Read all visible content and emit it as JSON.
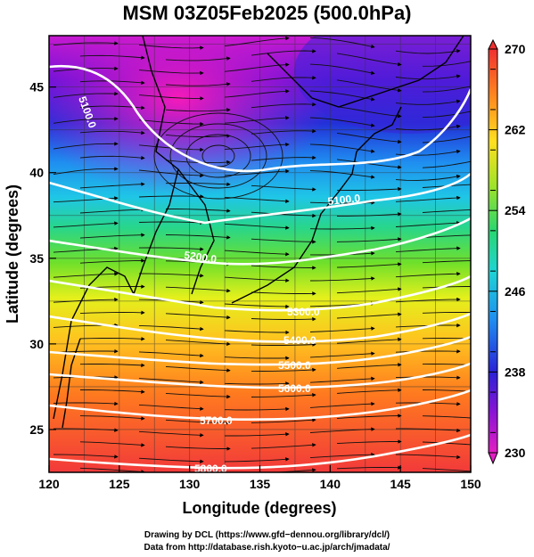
{
  "title": "MSM 03Z05Feb2025 (500.0hPa)",
  "xlabel": "Longitude (degrees)",
  "ylabel": "Latitude  (degrees)",
  "x_ticks": [
    "120",
    "125",
    "130",
    "135",
    "140",
    "145",
    "150"
  ],
  "y_ticks": [
    "25",
    "30",
    "35",
    "40",
    "45"
  ],
  "colorbar": {
    "ticks": [
      "230",
      "238",
      "246",
      "254",
      "262",
      "270"
    ],
    "min": 230,
    "max": 270
  },
  "contours": [
    {
      "label": "5100.0"
    },
    {
      "label": "5100.0"
    },
    {
      "label": "5200.0"
    },
    {
      "label": "5300.0"
    },
    {
      "label": "5400.0"
    },
    {
      "label": "5500.0"
    },
    {
      "label": "5600.0"
    },
    {
      "label": "5700.0"
    },
    {
      "label": "5800.0"
    }
  ],
  "credits": {
    "line1": "Drawing by DCL (https://www.gfd−dennou.org/library/dcl/)",
    "line2": "Data from http://database.rish.kyoto−u.ac.jp/arch/jmadata/"
  },
  "map": {
    "lon_range": [
      120,
      150
    ],
    "lat_range": [
      22.5,
      48
    ],
    "plot": {
      "type": "heatmap",
      "field": "temperature",
      "overlays": [
        "geopotential height contours",
        "wind streamlines",
        "coastlines"
      ],
      "grid": true
    }
  }
}
